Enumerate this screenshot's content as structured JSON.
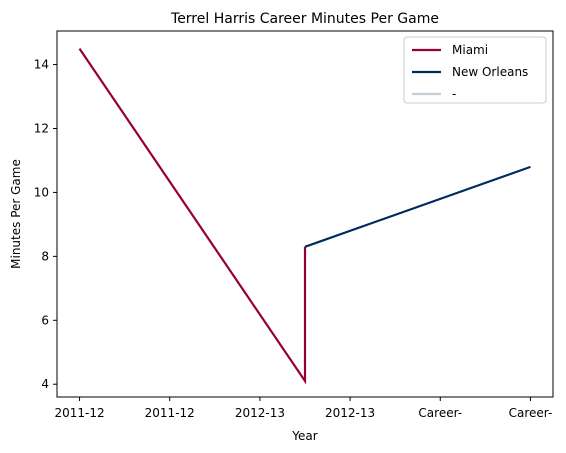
{
  "chart_data": {
    "type": "line",
    "title": "Terrel Harris Career Minutes Per Game",
    "xlabel": "Year",
    "ylabel": "Minutes Per Game",
    "x_tick_labels": [
      "2011-12",
      "2011-12",
      "2012-13",
      "2012-13",
      "Career-",
      "Career-"
    ],
    "x_range": [
      -0.25,
      5.25
    ],
    "ylim": [
      3.6,
      15.05
    ],
    "y_ticks": [
      4,
      6,
      8,
      10,
      12,
      14
    ],
    "grid": false,
    "legend_position": "top-right",
    "series": [
      {
        "name": "Miami",
        "color": "#98002E",
        "points": [
          [
            0,
            14.5
          ],
          [
            2.5,
            4.1
          ],
          [
            2.5,
            8.3
          ]
        ]
      },
      {
        "name": "New Orleans",
        "color": "#002B5C",
        "points": [
          [
            2.5,
            8.3
          ],
          [
            5,
            10.8
          ]
        ]
      },
      {
        "name": "-",
        "color": "#C4CED4",
        "points": []
      }
    ]
  }
}
